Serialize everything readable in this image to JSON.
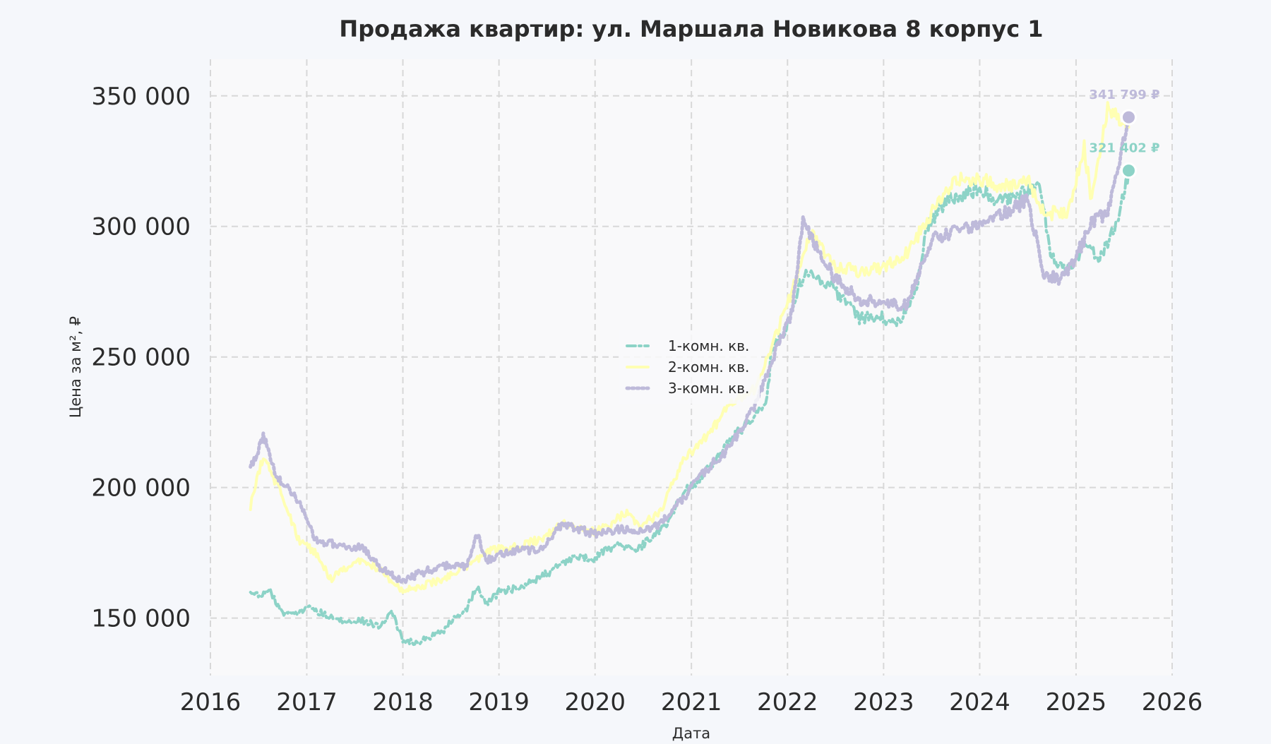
{
  "chart_data": {
    "type": "line",
    "title": "Продажа квартир: ул. Маршала Новикова 8 корпус 1",
    "xlabel": "Дата",
    "ylabel": "Цена за м², ₽",
    "xlim": [
      "2016-01-01",
      "2026-01-01"
    ],
    "ylim": [
      128000,
      364000
    ],
    "x_ticks": [
      "2016",
      "2017",
      "2018",
      "2019",
      "2020",
      "2021",
      "2022",
      "2023",
      "2024",
      "2025",
      "2026"
    ],
    "y_ticks": [
      150000,
      200000,
      250000,
      300000,
      350000
    ],
    "y_tick_labels": [
      "150 000",
      "200 000",
      "250 000",
      "300 000",
      "350 000"
    ],
    "grid": true,
    "legend_position": "center",
    "series": [
      {
        "name": "1-комн. кв.",
        "color": "#8dd3c7",
        "style": "dash-dot",
        "points": [
          [
            "2016-06-01",
            159000
          ],
          [
            "2016-08-15",
            160000
          ],
          [
            "2016-10-01",
            152000
          ],
          [
            "2016-11-20",
            151000
          ],
          [
            "2017-01-01",
            154000
          ],
          [
            "2017-03-01",
            152000
          ],
          [
            "2017-05-01",
            149000
          ],
          [
            "2017-08-01",
            149000
          ],
          [
            "2017-10-01",
            147000
          ],
          [
            "2017-11-20",
            152000
          ],
          [
            "2018-01-01",
            142000
          ],
          [
            "2018-02-20",
            140000
          ],
          [
            "2018-04-15",
            143000
          ],
          [
            "2018-06-01",
            145000
          ],
          [
            "2018-07-15",
            150000
          ],
          [
            "2018-09-01",
            154000
          ],
          [
            "2018-10-10",
            162000
          ],
          [
            "2018-11-15",
            155000
          ],
          [
            "2019-01-01",
            160000
          ],
          [
            "2019-04-01",
            162000
          ],
          [
            "2019-07-01",
            167000
          ],
          [
            "2019-10-01",
            173000
          ],
          [
            "2020-01-01",
            173000
          ],
          [
            "2020-04-01",
            179000
          ],
          [
            "2020-06-01",
            175000
          ],
          [
            "2020-08-01",
            181000
          ],
          [
            "2020-10-01",
            186000
          ],
          [
            "2020-12-01",
            198000
          ],
          [
            "2021-02-01",
            203000
          ],
          [
            "2021-04-01",
            210000
          ],
          [
            "2021-06-01",
            218000
          ],
          [
            "2021-08-01",
            225000
          ],
          [
            "2021-10-15",
            233000
          ],
          [
            "2021-11-01",
            252000
          ],
          [
            "2022-01-01",
            262000
          ],
          [
            "2022-02-15",
            278000
          ],
          [
            "2022-04-01",
            283000
          ],
          [
            "2022-06-01",
            278000
          ],
          [
            "2022-08-01",
            272000
          ],
          [
            "2022-10-01",
            265000
          ],
          [
            "2022-12-01",
            266000
          ],
          [
            "2023-03-01",
            263000
          ],
          [
            "2023-05-01",
            274000
          ],
          [
            "2023-06-15",
            300000
          ],
          [
            "2023-09-01",
            310000
          ],
          [
            "2023-11-01",
            312000
          ],
          [
            "2024-01-01",
            315000
          ],
          [
            "2024-03-01",
            310000
          ],
          [
            "2024-06-01",
            312000
          ],
          [
            "2024-08-15",
            316000
          ],
          [
            "2024-10-01",
            288000
          ],
          [
            "2024-12-01",
            283000
          ],
          [
            "2025-02-01",
            293000
          ],
          [
            "2025-04-01",
            288000
          ],
          [
            "2025-06-01",
            300000
          ],
          [
            "2025-07-20",
            321402
          ]
        ]
      },
      {
        "name": "2-комн. кв.",
        "color": "#ffffb3",
        "style": "solid",
        "points": [
          [
            "2016-06-01",
            193000
          ],
          [
            "2016-07-20",
            212000
          ],
          [
            "2016-09-01",
            203000
          ],
          [
            "2016-10-15",
            193000
          ],
          [
            "2016-12-01",
            180000
          ],
          [
            "2017-02-01",
            175000
          ],
          [
            "2017-04-01",
            165000
          ],
          [
            "2017-06-01",
            169000
          ],
          [
            "2017-08-01",
            172000
          ],
          [
            "2017-10-01",
            169000
          ],
          [
            "2018-01-01",
            160000
          ],
          [
            "2018-03-01",
            162000
          ],
          [
            "2018-06-01",
            165000
          ],
          [
            "2018-09-01",
            170000
          ],
          [
            "2018-12-01",
            176000
          ],
          [
            "2019-03-01",
            177000
          ],
          [
            "2019-06-01",
            180000
          ],
          [
            "2019-09-01",
            186000
          ],
          [
            "2020-01-01",
            183000
          ],
          [
            "2020-03-01",
            186000
          ],
          [
            "2020-05-01",
            191000
          ],
          [
            "2020-06-15",
            185000
          ],
          [
            "2020-09-01",
            190000
          ],
          [
            "2020-12-01",
            210000
          ],
          [
            "2021-03-01",
            220000
          ],
          [
            "2021-06-01",
            232000
          ],
          [
            "2021-09-01",
            238000
          ],
          [
            "2022-01-01",
            270000
          ],
          [
            "2022-04-01",
            298000
          ],
          [
            "2022-07-01",
            284000
          ],
          [
            "2022-10-01",
            283000
          ],
          [
            "2023-01-01",
            284000
          ],
          [
            "2023-04-01",
            290000
          ],
          [
            "2023-07-01",
            305000
          ],
          [
            "2023-10-01",
            318000
          ],
          [
            "2024-01-01",
            318000
          ],
          [
            "2024-04-01",
            315000
          ],
          [
            "2024-07-01",
            318000
          ],
          [
            "2024-09-01",
            305000
          ],
          [
            "2024-12-01",
            305000
          ],
          [
            "2025-02-01",
            330000
          ],
          [
            "2025-03-01",
            310000
          ],
          [
            "2025-05-01",
            345000
          ],
          [
            "2025-07-20",
            338000
          ]
        ]
      },
      {
        "name": "3-комн. кв.",
        "color": "#bebada",
        "style": "dotted",
        "points": [
          [
            "2016-06-01",
            207000
          ],
          [
            "2016-07-20",
            220000
          ],
          [
            "2016-09-01",
            206000
          ],
          [
            "2016-10-15",
            200000
          ],
          [
            "2016-12-01",
            195000
          ],
          [
            "2017-02-01",
            180000
          ],
          [
            "2017-05-01",
            178000
          ],
          [
            "2017-08-01",
            177000
          ],
          [
            "2017-10-01",
            170000
          ],
          [
            "2018-01-01",
            164000
          ],
          [
            "2018-03-01",
            167000
          ],
          [
            "2018-06-01",
            170000
          ],
          [
            "2018-09-01",
            170000
          ],
          [
            "2018-10-10",
            182000
          ],
          [
            "2018-11-15",
            172000
          ],
          [
            "2019-03-01",
            176000
          ],
          [
            "2019-06-01",
            176000
          ],
          [
            "2019-09-01",
            186000
          ],
          [
            "2020-01-01",
            182000
          ],
          [
            "2020-04-01",
            184000
          ],
          [
            "2020-06-01",
            183000
          ],
          [
            "2020-09-01",
            186000
          ],
          [
            "2020-12-01",
            196000
          ],
          [
            "2021-03-01",
            207000
          ],
          [
            "2021-06-01",
            216000
          ],
          [
            "2021-09-01",
            232000
          ],
          [
            "2021-12-01",
            256000
          ],
          [
            "2022-01-15",
            266000
          ],
          [
            "2022-03-01",
            302000
          ],
          [
            "2022-05-01",
            290000
          ],
          [
            "2022-07-01",
            280000
          ],
          [
            "2022-10-01",
            272000
          ],
          [
            "2023-01-01",
            270000
          ],
          [
            "2023-04-01",
            270000
          ],
          [
            "2023-07-01",
            295000
          ],
          [
            "2023-10-01",
            298000
          ],
          [
            "2024-01-01",
            300000
          ],
          [
            "2024-04-01",
            305000
          ],
          [
            "2024-07-01",
            310000
          ],
          [
            "2024-09-01",
            282000
          ],
          [
            "2024-11-01",
            280000
          ],
          [
            "2025-01-01",
            288000
          ],
          [
            "2025-03-01",
            302000
          ],
          [
            "2025-05-01",
            305000
          ],
          [
            "2025-07-20",
            341799
          ]
        ]
      }
    ],
    "end_markers": [
      {
        "series": "1-комн. кв.",
        "x": "2025-07-20",
        "y": 321402,
        "label": "321 402 ₽",
        "color": "#8dd3c7",
        "label_color": "#8dd3c7"
      },
      {
        "series": "3-комн. кв.",
        "x": "2025-07-20",
        "y": 341799,
        "label": "341 799 ₽",
        "color": "#bebada",
        "label_color": "#bebada"
      }
    ]
  }
}
